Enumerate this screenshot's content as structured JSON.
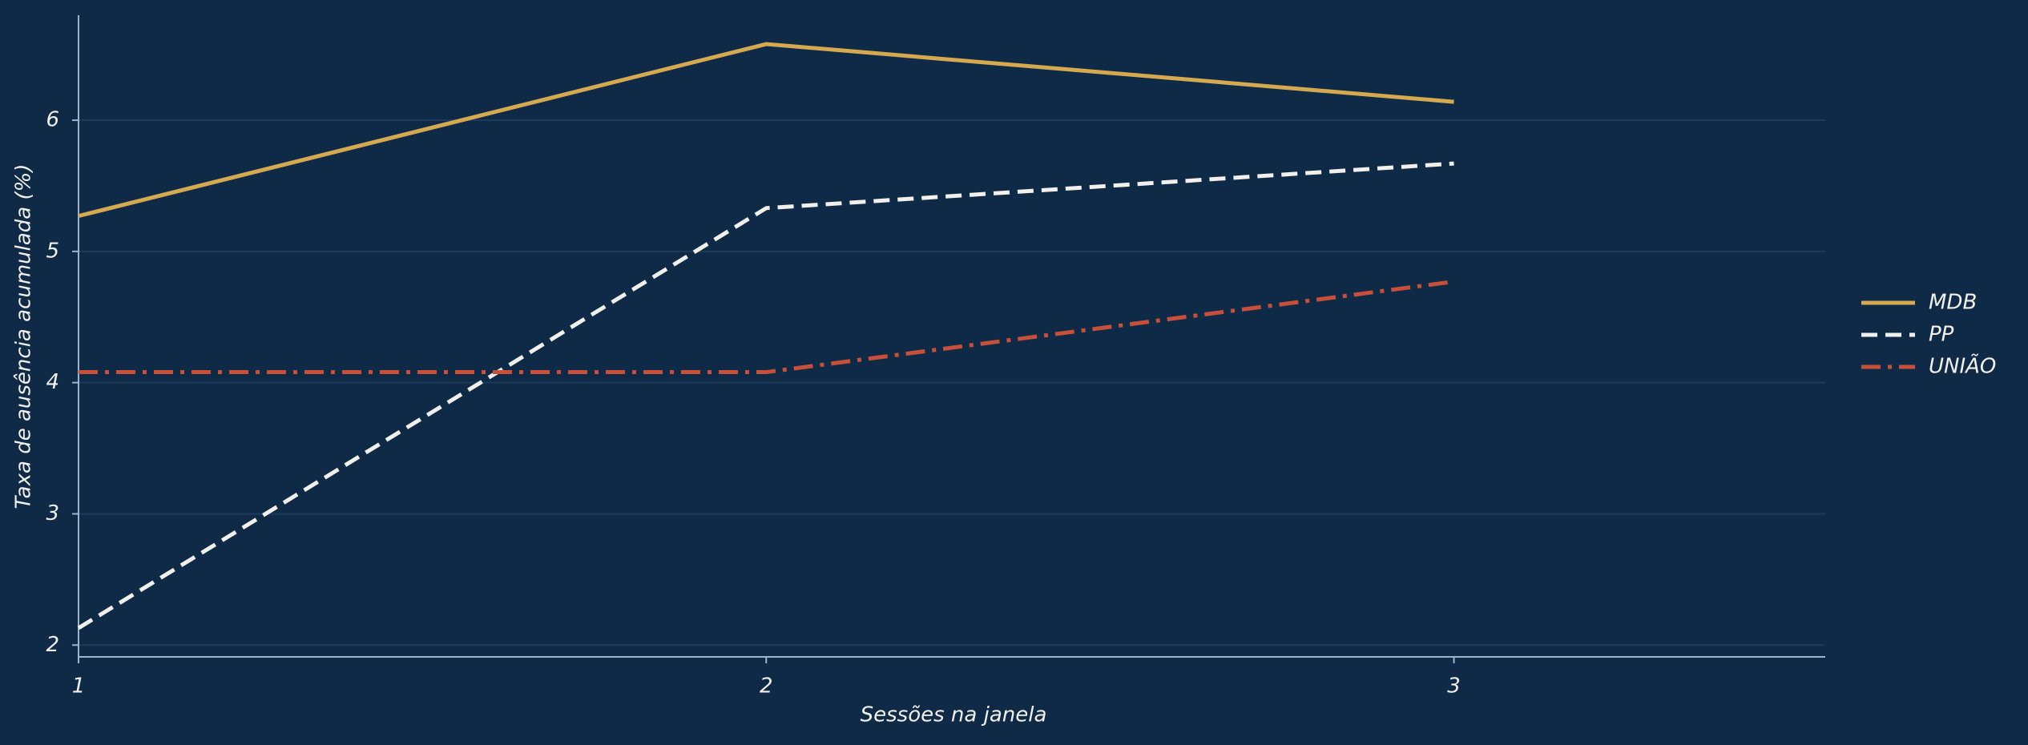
{
  "chart_data": {
    "type": "line",
    "x_label": "Sessões na janela",
    "y_label": "Taxa de ausência acumulada (%)",
    "x": [
      1,
      2,
      3
    ],
    "series": [
      {
        "name": "MDB",
        "color": "#d4a94f",
        "dash": "solid",
        "values": [
          5.27,
          6.58,
          6.14
        ]
      },
      {
        "name": "PP",
        "color": "#f2f0ea",
        "dash": "dashed",
        "values": [
          2.13,
          5.33,
          5.67
        ]
      },
      {
        "name": "UNIÃO",
        "color": "#c8503a",
        "dash": "dashdot",
        "values": [
          4.08,
          4.08,
          4.77
        ]
      }
    ],
    "xlim": [
      1,
      3.54
    ],
    "xticks": [
      1,
      2,
      3
    ],
    "ylim": [
      1.91,
      6.8
    ],
    "yticks": [
      2,
      3,
      4,
      5,
      6
    ],
    "grid": true,
    "legend": "right"
  }
}
